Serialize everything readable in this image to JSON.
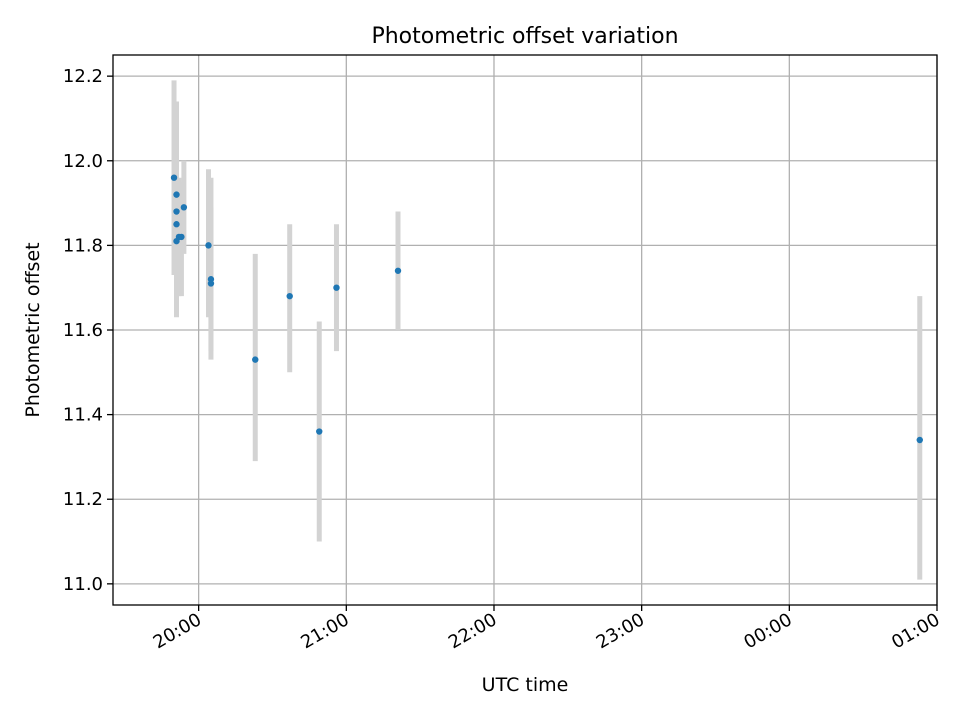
{
  "chart_data": {
    "type": "scatter",
    "title": "Photometric offset variation",
    "xlabel": "UTC time",
    "ylabel": "Photometric offset",
    "x_unit": "hours (UTC)",
    "xlim": [
      19.42,
      25.0
    ],
    "ylim": [
      10.95,
      12.25
    ],
    "grid": true,
    "x_ticks": [
      {
        "value": 20.0,
        "label": "20:00"
      },
      {
        "value": 21.0,
        "label": "21:00"
      },
      {
        "value": 22.0,
        "label": "22:00"
      },
      {
        "value": 23.0,
        "label": "23:00"
      },
      {
        "value": 24.0,
        "label": "00:00"
      },
      {
        "value": 25.0,
        "label": "01:00"
      }
    ],
    "y_ticks": [
      {
        "value": 11.0,
        "label": "11.0"
      },
      {
        "value": 11.2,
        "label": "11.2"
      },
      {
        "value": 11.4,
        "label": "11.4"
      },
      {
        "value": 11.6,
        "label": "11.6"
      },
      {
        "value": 11.8,
        "label": "11.8"
      },
      {
        "value": 12.0,
        "label": "12.0"
      },
      {
        "value": 12.2,
        "label": "12.2"
      }
    ],
    "series": [
      {
        "marker_color": "#1f77b4",
        "errorbar_color": "#d3d3d3",
        "points": [
          {
            "x": "19:50",
            "y": 11.96,
            "ylow": 11.73,
            "yhigh": 12.19
          },
          {
            "x": "19:51",
            "y": 11.92,
            "ylow": 11.72,
            "yhigh": 12.14
          },
          {
            "x": "19:51",
            "y": 11.88,
            "ylow": 11.7,
            "yhigh": 12.06
          },
          {
            "x": "19:51",
            "y": 11.85,
            "ylow": 11.68,
            "yhigh": 12.03
          },
          {
            "x": "19:51",
            "y": 11.81,
            "ylow": 11.63,
            "yhigh": 11.99
          },
          {
            "x": "19:52",
            "y": 11.82,
            "ylow": 11.68,
            "yhigh": 11.96
          },
          {
            "x": "19:53",
            "y": 11.82,
            "ylow": 11.68,
            "yhigh": 11.95
          },
          {
            "x": "19:54",
            "y": 11.89,
            "ylow": 11.78,
            "yhigh": 12.0
          },
          {
            "x": "20:04",
            "y": 11.8,
            "ylow": 11.63,
            "yhigh": 11.98
          },
          {
            "x": "20:05",
            "y": 11.72,
            "ylow": 11.55,
            "yhigh": 11.96
          },
          {
            "x": "20:05",
            "y": 11.71,
            "ylow": 11.53,
            "yhigh": 11.89
          },
          {
            "x": "20:23",
            "y": 11.53,
            "ylow": 11.29,
            "yhigh": 11.78
          },
          {
            "x": "20:37",
            "y": 11.68,
            "ylow": 11.5,
            "yhigh": 11.85
          },
          {
            "x": "20:49",
            "y": 11.36,
            "ylow": 11.1,
            "yhigh": 11.62
          },
          {
            "x": "20:56",
            "y": 11.7,
            "ylow": 11.55,
            "yhigh": 11.85
          },
          {
            "x": "21:21",
            "y": 11.74,
            "ylow": 11.6,
            "yhigh": 11.88
          },
          {
            "x": "00:53",
            "y": 11.34,
            "ylow": 11.01,
            "yhigh": 11.68
          }
        ]
      }
    ]
  }
}
